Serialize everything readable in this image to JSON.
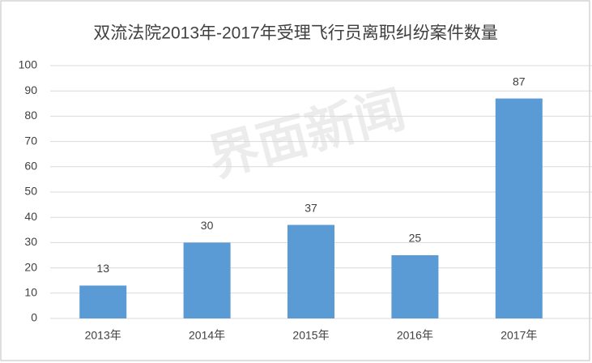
{
  "chart_data": {
    "type": "bar",
    "title": "双流法院2013年-2017年受理飞行员离职纠纷案件数量",
    "watermark": "界面新闻",
    "categories": [
      "2013年",
      "2014年",
      "2015年",
      "2016年",
      "2017年"
    ],
    "values": [
      13,
      30,
      37,
      25,
      87
    ],
    "color": "#5b9bd5",
    "ylim": [
      0,
      100
    ],
    "yticks": [
      0,
      10,
      20,
      30,
      40,
      50,
      60,
      70,
      80,
      90,
      100
    ],
    "grid": true
  }
}
